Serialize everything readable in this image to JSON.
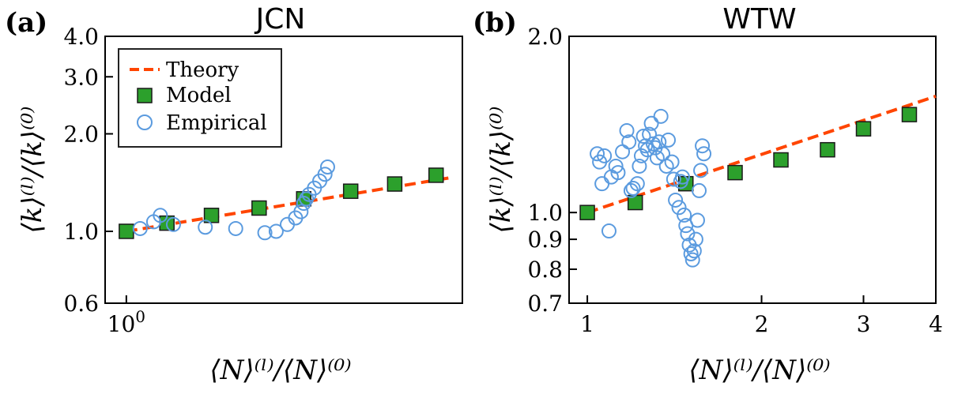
{
  "colors": {
    "theory": "#ff4500",
    "model_fill": "#2ca02c",
    "model_edge": "#1a1a1a",
    "empirical": "#5b9bdf"
  },
  "chart_data": [
    {
      "panel_label": "(a)",
      "title": "JCN",
      "type": "scatter",
      "xscale": "log",
      "yscale": "log",
      "xlim": [
        0.97,
        1.62
      ],
      "ylim": [
        0.6,
        4.0
      ],
      "x_ticks": [
        1.0
      ],
      "x_tick_labels": [
        "10^0"
      ],
      "y_ticks": [
        0.6,
        1.0,
        2.0,
        3.0,
        4.0
      ],
      "y_tick_labels": [
        "0.6",
        "1.0",
        "2.0",
        "3.0",
        "4.0"
      ],
      "xlabel": "⟨N⟩⁽ˡ⁾/⟨N⟩⁽⁰⁾",
      "ylabel": "⟨k⟩⁽ˡ⁾/⟨k⟩⁽⁰⁾",
      "legend": {
        "placement": "top-left",
        "entries": [
          "Theory",
          "Model",
          "Empirical"
        ]
      },
      "series": [
        {
          "name": "Theory",
          "kind": "line",
          "x": [
            1.0,
            1.6
          ],
          "y": [
            1.0,
            1.47
          ]
        },
        {
          "name": "Model",
          "kind": "square",
          "x": [
            1.0,
            1.06,
            1.13,
            1.21,
            1.29,
            1.38,
            1.47,
            1.56
          ],
          "y": [
            1.0,
            1.06,
            1.12,
            1.18,
            1.26,
            1.33,
            1.4,
            1.49
          ]
        },
        {
          "name": "Empirical",
          "kind": "circle",
          "x": [
            1.02,
            1.04,
            1.05,
            1.07,
            1.12,
            1.17,
            1.22,
            1.24,
            1.26,
            1.275,
            1.285,
            1.29,
            1.295,
            1.3,
            1.31,
            1.32,
            1.33,
            1.335
          ],
          "y": [
            1.02,
            1.07,
            1.12,
            1.05,
            1.03,
            1.02,
            0.99,
            1.0,
            1.05,
            1.1,
            1.15,
            1.22,
            1.26,
            1.3,
            1.36,
            1.43,
            1.5,
            1.58
          ]
        }
      ]
    },
    {
      "panel_label": "(b)",
      "title": "WTW",
      "type": "scatter",
      "xscale": "log",
      "yscale": "log",
      "xlim": [
        0.93,
        4.0
      ],
      "ylim": [
        0.7,
        2.0
      ],
      "x_ticks": [
        1,
        2,
        3,
        4
      ],
      "x_tick_labels": [
        "1",
        "2",
        "3",
        "4"
      ],
      "y_ticks": [
        0.7,
        0.8,
        0.9,
        1.0,
        2.0
      ],
      "y_tick_labels": [
        "0.7",
        "0.8",
        "0.9",
        "1.0",
        "2.0"
      ],
      "xlabel": "⟨N⟩⁽ˡ⁾/⟨N⟩⁽⁰⁾",
      "ylabel": "⟨k⟩⁽ˡ⁾/⟨k⟩⁽⁰⁾",
      "series": [
        {
          "name": "Theory",
          "kind": "line",
          "x": [
            1.0,
            4.0
          ],
          "y": [
            1.0,
            1.58
          ]
        },
        {
          "name": "Model",
          "kind": "square",
          "x": [
            1.0,
            1.21,
            1.48,
            1.8,
            2.16,
            2.6,
            3.0,
            3.6
          ],
          "y": [
            1.0,
            1.04,
            1.12,
            1.17,
            1.23,
            1.28,
            1.39,
            1.47
          ]
        },
        {
          "name": "Empirical",
          "kind": "circle",
          "x": [
            1.04,
            1.05,
            1.06,
            1.07,
            1.09,
            1.1,
            1.12,
            1.13,
            1.15,
            1.17,
            1.18,
            1.19,
            1.2,
            1.22,
            1.23,
            1.24,
            1.25,
            1.26,
            1.27,
            1.28,
            1.29,
            1.3,
            1.31,
            1.32,
            1.33,
            1.34,
            1.35,
            1.37,
            1.38,
            1.4,
            1.41,
            1.42,
            1.44,
            1.45,
            1.46,
            1.47,
            1.48,
            1.49,
            1.5,
            1.51,
            1.52,
            1.53,
            1.54,
            1.55,
            1.56,
            1.57,
            1.58,
            1.59
          ],
          "y": [
            1.26,
            1.22,
            1.12,
            1.25,
            0.93,
            1.15,
            1.2,
            1.17,
            1.27,
            1.38,
            1.32,
            1.09,
            1.1,
            1.12,
            1.2,
            1.25,
            1.35,
            1.3,
            1.28,
            1.36,
            1.42,
            1.31,
            1.29,
            1.24,
            1.32,
            1.46,
            1.26,
            1.2,
            1.33,
            1.22,
            1.14,
            1.05,
            1.02,
            1.13,
            1.15,
            0.99,
            0.95,
            0.92,
            0.88,
            0.85,
            0.83,
            0.86,
            0.9,
            0.97,
            1.09,
            1.18,
            1.3,
            1.26
          ]
        }
      ]
    }
  ]
}
